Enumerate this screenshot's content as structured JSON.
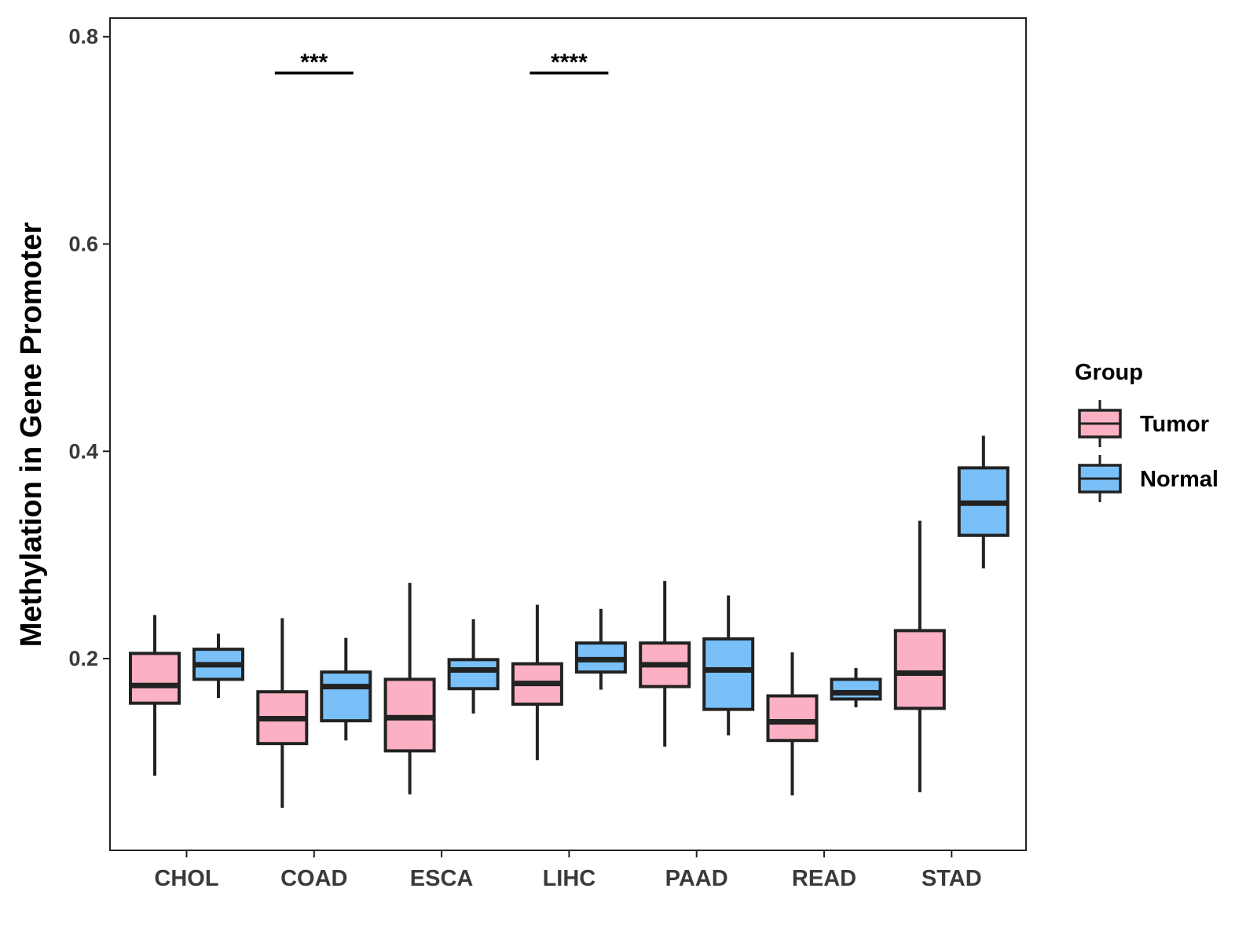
{
  "chart_data": {
    "type": "boxplot",
    "title": "",
    "xlabel": "",
    "ylabel": "Methylation in Gene Promoter",
    "ylim": [
      0.015,
      0.818
    ],
    "yticks": [
      0.2,
      0.4,
      0.6,
      0.8
    ],
    "ytick_labels": [
      "0.2",
      "0.4",
      "0.6",
      "0.8"
    ],
    "categories": [
      "CHOL",
      "COAD",
      "ESCA",
      "LIHC",
      "PAAD",
      "READ",
      "STAD"
    ],
    "legend": {
      "title": "Group",
      "position": "right",
      "entries": [
        {
          "name": "Tumor",
          "color": "#FBB1C3"
        },
        {
          "name": "Normal",
          "color": "#7AC0F8"
        }
      ]
    },
    "series": [
      {
        "name": "Tumor",
        "color": "#FBB1C3",
        "boxes": [
          {
            "category": "CHOL",
            "whisker_low": 0.087,
            "q1": 0.157,
            "median": 0.174,
            "q3": 0.205,
            "whisker_high": 0.242
          },
          {
            "category": "COAD",
            "whisker_low": 0.056,
            "q1": 0.118,
            "median": 0.142,
            "q3": 0.168,
            "whisker_high": 0.239
          },
          {
            "category": "ESCA",
            "whisker_low": 0.069,
            "q1": 0.111,
            "median": 0.143,
            "q3": 0.18,
            "whisker_high": 0.273
          },
          {
            "category": "LIHC",
            "whisker_low": 0.102,
            "q1": 0.156,
            "median": 0.176,
            "q3": 0.195,
            "whisker_high": 0.252
          },
          {
            "category": "PAAD",
            "whisker_low": 0.115,
            "q1": 0.173,
            "median": 0.194,
            "q3": 0.215,
            "whisker_high": 0.275
          },
          {
            "category": "READ",
            "whisker_low": 0.068,
            "q1": 0.121,
            "median": 0.139,
            "q3": 0.164,
            "whisker_high": 0.206
          },
          {
            "category": "STAD",
            "whisker_low": 0.071,
            "q1": 0.152,
            "median": 0.186,
            "q3": 0.227,
            "whisker_high": 0.333
          }
        ]
      },
      {
        "name": "Normal",
        "color": "#7AC0F8",
        "boxes": [
          {
            "category": "CHOL",
            "whisker_low": 0.162,
            "q1": 0.18,
            "median": 0.194,
            "q3": 0.209,
            "whisker_high": 0.224
          },
          {
            "category": "COAD",
            "whisker_low": 0.121,
            "q1": 0.14,
            "median": 0.173,
            "q3": 0.187,
            "whisker_high": 0.22
          },
          {
            "category": "ESCA",
            "whisker_low": 0.147,
            "q1": 0.171,
            "median": 0.189,
            "q3": 0.199,
            "whisker_high": 0.238
          },
          {
            "category": "LIHC",
            "whisker_low": 0.17,
            "q1": 0.187,
            "median": 0.199,
            "q3": 0.215,
            "whisker_high": 0.248
          },
          {
            "category": "PAAD",
            "whisker_low": 0.126,
            "q1": 0.151,
            "median": 0.189,
            "q3": 0.219,
            "whisker_high": 0.261
          },
          {
            "category": "READ",
            "whisker_low": 0.153,
            "q1": 0.161,
            "median": 0.167,
            "q3": 0.18,
            "whisker_high": 0.191
          },
          {
            "category": "STAD",
            "whisker_low": 0.287,
            "q1": 0.319,
            "median": 0.35,
            "q3": 0.384,
            "whisker_high": 0.415
          }
        ]
      }
    ],
    "annotations": [
      {
        "category": "COAD",
        "label": "***",
        "y": 0.765
      },
      {
        "category": "LIHC",
        "label": "****",
        "y": 0.765
      }
    ],
    "grid": false
  }
}
